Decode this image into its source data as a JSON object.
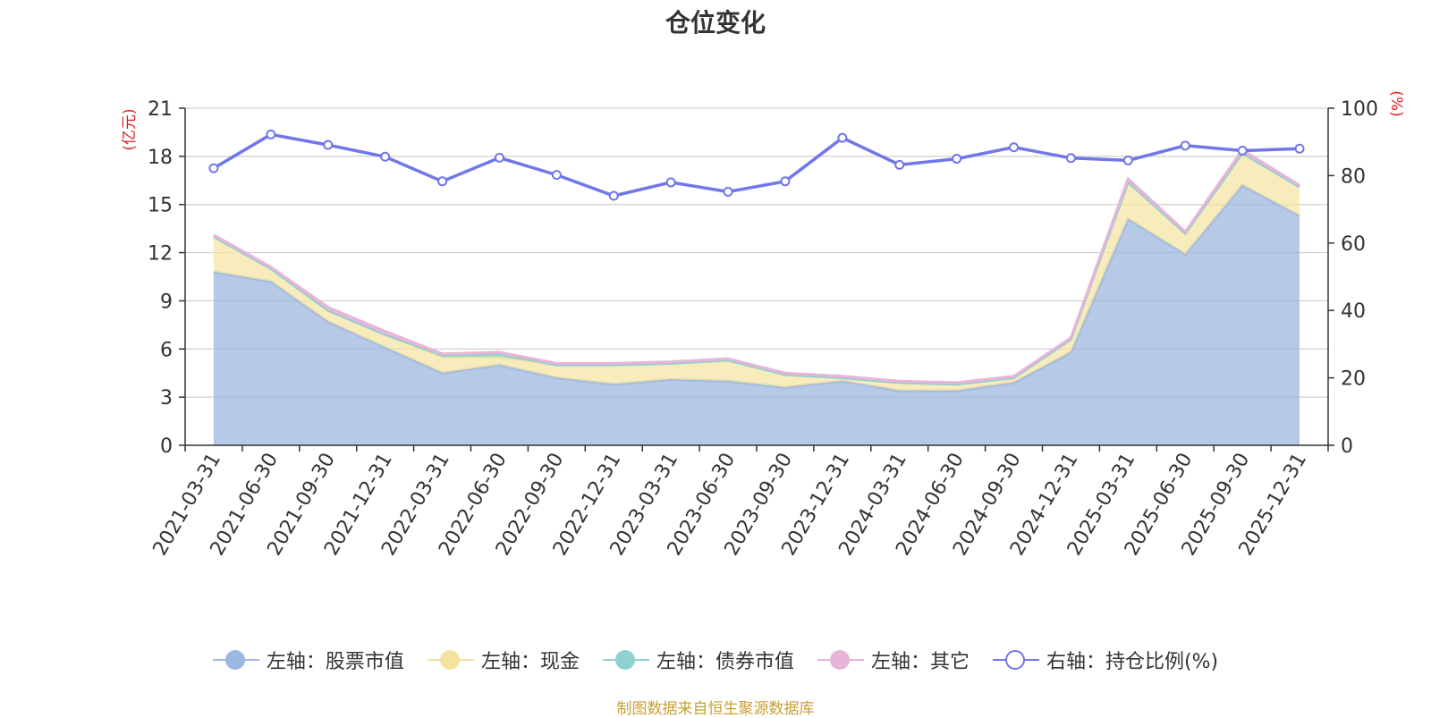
{
  "chart_data": {
    "type": "area",
    "title": "仓位变化",
    "source_note": "制图数据来自恒生聚源数据库",
    "left_axis": {
      "unit_label": "(亿元)",
      "min": 0,
      "max": 21,
      "ticks": [
        "0",
        "3",
        "6",
        "9",
        "12",
        "15",
        "18",
        "21"
      ]
    },
    "right_axis": {
      "unit_label": "(%)",
      "min": 0,
      "max": 100,
      "ticks": [
        "0",
        "20",
        "40",
        "60",
        "80",
        "100"
      ]
    },
    "categories": [
      "2021-03-31",
      "2021-06-30",
      "2021-09-30",
      "2021-12-31",
      "2022-03-31",
      "2022-06-30",
      "2022-09-30",
      "2022-12-31",
      "2023-03-31",
      "2023-06-30",
      "2023-09-30",
      "2023-12-31",
      "2024-03-31",
      "2024-06-30",
      "2024-09-30",
      "2024-12-31",
      "2025-03-31",
      "2025-06-30",
      "2025-09-30",
      "2025-12-31"
    ],
    "series": [
      {
        "name": "左轴：股票市值",
        "axis": "left",
        "stack": true,
        "color": "#9db8e0",
        "values": [
          10.8,
          10.2,
          7.7,
          6.1,
          4.5,
          5.0,
          4.2,
          3.8,
          4.1,
          4.0,
          3.6,
          4.0,
          3.4,
          3.4,
          3.9,
          5.8,
          14.1,
          11.9,
          16.2,
          14.3
        ]
      },
      {
        "name": "左轴：现金",
        "axis": "left",
        "stack": true,
        "color": "#f5e2a0",
        "values": [
          2.2,
          0.8,
          0.7,
          0.8,
          1.0,
          0.5,
          0.8,
          1.2,
          1.0,
          1.3,
          0.8,
          0.2,
          0.5,
          0.4,
          0.3,
          0.8,
          2.3,
          1.3,
          2.0,
          1.8
        ]
      },
      {
        "name": "左轴：债券市值",
        "axis": "left",
        "stack": true,
        "color": "#8fd1d1",
        "values": [
          0,
          0,
          0,
          0,
          0.1,
          0.2,
          0,
          0,
          0,
          0,
          0,
          0,
          0,
          0,
          0,
          0,
          0,
          0,
          0,
          0
        ]
      },
      {
        "name": "左轴：其它",
        "axis": "left",
        "stack": true,
        "color": "#e8b4d8",
        "values": [
          0.1,
          0.1,
          0.2,
          0.2,
          0.1,
          0.1,
          0.1,
          0.1,
          0.1,
          0.1,
          0.1,
          0.1,
          0.1,
          0.1,
          0.1,
          0.1,
          0.2,
          0.1,
          0.2,
          0.1
        ]
      },
      {
        "name": "右轴：持仓比例(%)",
        "axis": "right",
        "stack": false,
        "color": "#7177e8",
        "values": [
          82.2,
          92.2,
          89.1,
          85.6,
          78.3,
          85.3,
          80.2,
          74.0,
          78.0,
          75.2,
          78.3,
          91.2,
          83.2,
          85.0,
          88.4,
          85.2,
          84.5,
          88.9,
          87.4,
          88.0
        ]
      }
    ],
    "grid": true,
    "legend_position": "bottom"
  }
}
